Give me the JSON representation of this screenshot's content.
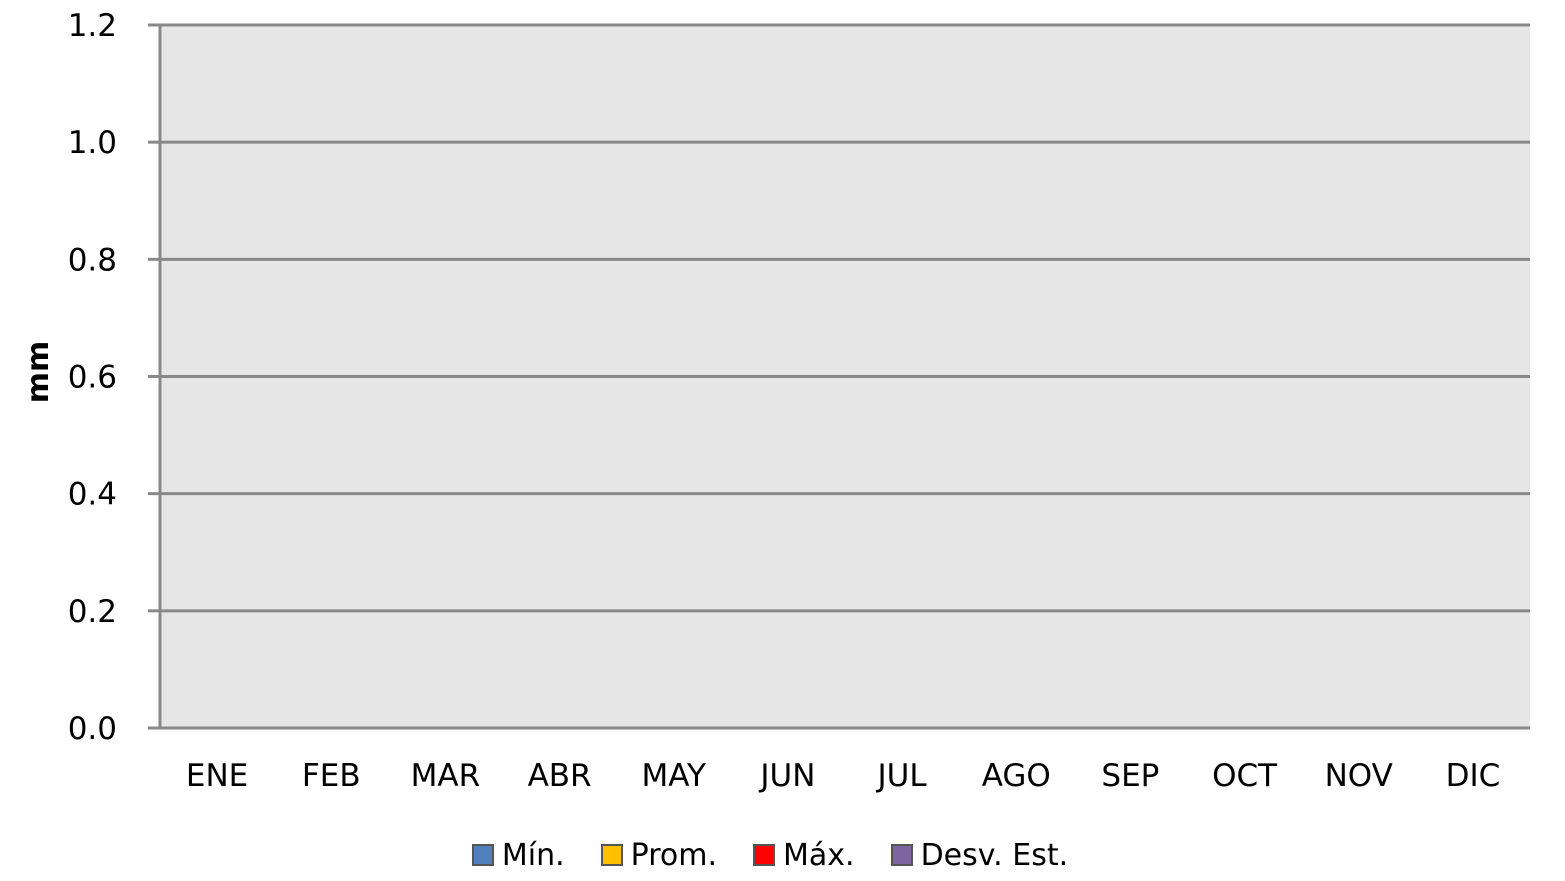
{
  "chart_data": {
    "type": "bar",
    "title": "",
    "xlabel": "",
    "ylabel": "mm",
    "ylim": [
      0,
      1.2
    ],
    "yticks": [
      "0.0",
      "0.2",
      "0.4",
      "0.6",
      "0.8",
      "1.0",
      "1.2"
    ],
    "categories": [
      "ENE",
      "FEB",
      "MAR",
      "ABR",
      "MAY",
      "JUN",
      "JUL",
      "AGO",
      "SEP",
      "OCT",
      "NOV",
      "DIC"
    ],
    "series": [
      {
        "name": "Mín.",
        "color": "#4f81bd",
        "values": [
          0,
          0,
          0,
          0,
          0,
          0,
          0,
          0,
          0,
          0,
          0,
          0
        ]
      },
      {
        "name": "Prom.",
        "color": "#ffc000",
        "values": [
          0,
          0,
          0,
          0,
          0,
          0,
          0,
          0,
          0,
          0,
          0,
          0
        ]
      },
      {
        "name": "Máx.",
        "color": "#ff0000",
        "values": [
          0,
          0,
          0,
          0,
          0,
          0,
          0,
          0,
          0,
          0,
          0,
          0
        ]
      },
      {
        "name": "Desv. Est.",
        "color": "#8064a2",
        "values": [
          0,
          0,
          0,
          0,
          0,
          0,
          0,
          0,
          0,
          0,
          0,
          0
        ]
      }
    ],
    "plot_background": "#e6e6e6",
    "gridline_color": "#888888",
    "grid": true,
    "legend_position": "bottom"
  }
}
